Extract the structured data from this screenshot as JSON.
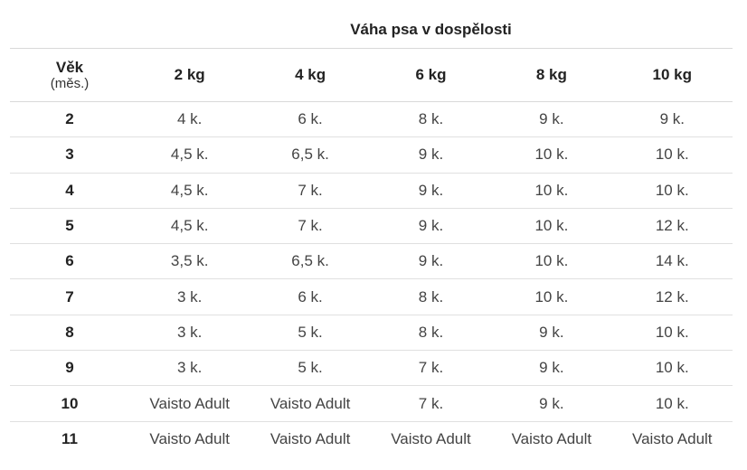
{
  "table": {
    "group_header": "Váha psa v dospělosti",
    "age_header": "Věk",
    "age_unit": "(měs.)",
    "weight_headers": [
      "2 kg",
      "4 kg",
      "6 kg",
      "8 kg",
      "10 kg"
    ],
    "rows": [
      {
        "age": "2",
        "values": [
          "4 k.",
          "6 k.",
          "8 k.",
          "9 k.",
          "9 k."
        ]
      },
      {
        "age": "3",
        "values": [
          "4,5 k.",
          "6,5 k.",
          "9 k.",
          "10 k.",
          "10 k."
        ]
      },
      {
        "age": "4",
        "values": [
          "4,5 k.",
          "7 k.",
          "9 k.",
          "10 k.",
          "10 k."
        ]
      },
      {
        "age": "5",
        "values": [
          "4,5 k.",
          "7 k.",
          "9 k.",
          "10 k.",
          "12 k."
        ]
      },
      {
        "age": "6",
        "values": [
          "3,5 k.",
          "6,5 k.",
          "9 k.",
          "10 k.",
          "14 k."
        ]
      },
      {
        "age": "7",
        "values": [
          "3 k.",
          "6 k.",
          "8 k.",
          "10 k.",
          "12 k."
        ]
      },
      {
        "age": "8",
        "values": [
          "3 k.",
          "5 k.",
          "8 k.",
          "9 k.",
          "10 k."
        ]
      },
      {
        "age": "9",
        "values": [
          "3 k.",
          "5 k.",
          "7 k.",
          "9 k.",
          "10 k."
        ]
      },
      {
        "age": "10",
        "values": [
          "Vaisto Adult",
          "Vaisto Adult",
          "7 k.",
          "9 k.",
          "10 k."
        ]
      },
      {
        "age": "11",
        "values": [
          "Vaisto Adult",
          "Vaisto Adult",
          "Vaisto Adult",
          "Vaisto Adult",
          "Vaisto Adult"
        ]
      }
    ]
  }
}
